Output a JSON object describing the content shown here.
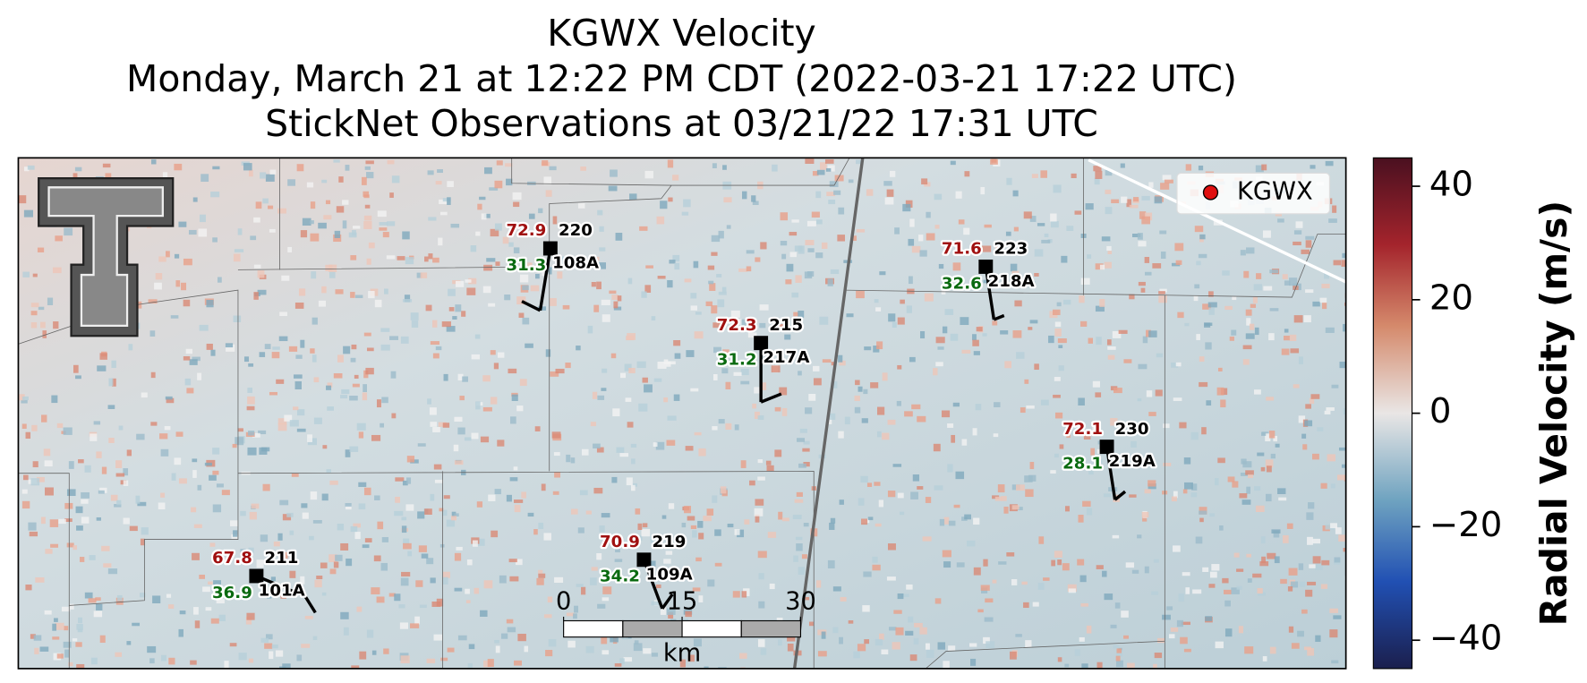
{
  "title": [
    "KGWX Velocity",
    "Monday, March 21 at 12:22 PM CDT (2022-03-21 17:22 UTC)",
    "StickNet Observations at 03/21/22 17:31 UTC"
  ],
  "legend": {
    "label": "KGWX"
  },
  "stations": [
    {
      "temperature": 72.9,
      "dewpoint": 31.3,
      "number": "220",
      "id": "108A"
    },
    {
      "temperature": 72.3,
      "dewpoint": 31.2,
      "number": "215",
      "id": "217A"
    },
    {
      "temperature": 71.6,
      "dewpoint": 32.6,
      "number": "223",
      "id": "218A"
    },
    {
      "temperature": 72.1,
      "dewpoint": 28.1,
      "number": "230",
      "id": "219A"
    },
    {
      "temperature": 67.8,
      "dewpoint": 36.9,
      "number": "211",
      "id": "101A"
    },
    {
      "temperature": 70.9,
      "dewpoint": 34.2,
      "number": "219",
      "id": "109A"
    }
  ],
  "colorbar": {
    "label": "Radial Velocity (m/s)",
    "lim": [
      -45,
      45
    ],
    "ticks": [
      40,
      20,
      0,
      {
        "value": -20,
        "label": "−20"
      },
      {
        "value": -40,
        "label": "−40"
      }
    ]
  },
  "scale_bar": {
    "ticks": [
      0,
      15,
      30
    ],
    "unit": "km"
  }
}
